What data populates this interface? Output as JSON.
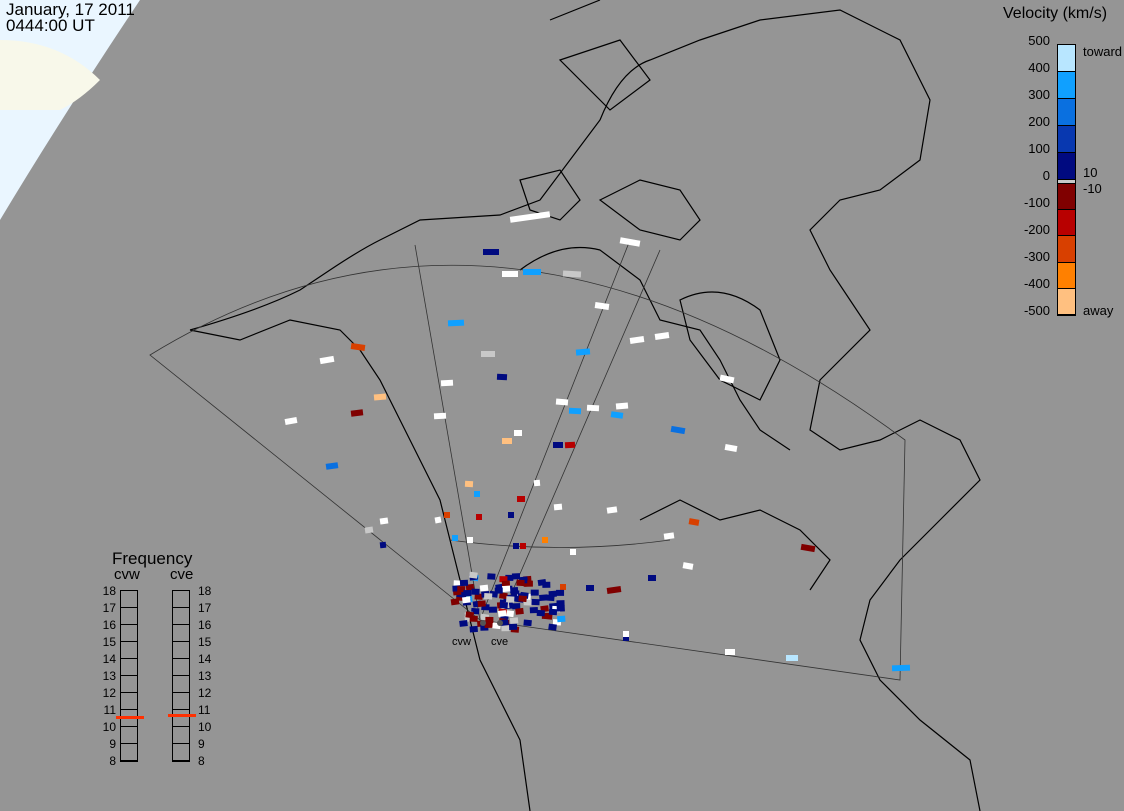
{
  "header": {
    "date": "January, 17 2011",
    "time": "0444:00 UT"
  },
  "colorbar": {
    "title": "Velocity (km/s)",
    "ticks": [
      "500",
      "400",
      "300",
      "200",
      "100",
      "0",
      "-100",
      "-200",
      "-300",
      "-400",
      "-500"
    ],
    "labels": {
      "toward": "toward",
      "away": "away",
      "pos_threshold": "10",
      "neg_threshold": "-10"
    },
    "colors_toward": [
      "#b8e6ff",
      "#10a0ff",
      "#0a70e0",
      "#0838b0",
      "#000a80"
    ],
    "color_zero": "#c8c8c8",
    "colors_away": [
      "#800000",
      "#b80000",
      "#d84000",
      "#ff8000",
      "#ffc080"
    ]
  },
  "frequency": {
    "title": "Frequency",
    "unit_ticks": [
      "18",
      "17",
      "16",
      "15",
      "14",
      "13",
      "12",
      "11",
      "10",
      "9",
      "8"
    ],
    "radars": [
      {
        "name": "cvw",
        "value_mhz": 10.6
      },
      {
        "name": "cve",
        "value_mhz": 10.7
      }
    ],
    "marker_color": "#ff3000"
  },
  "map": {
    "radar_labels": [
      "cvw",
      "cve"
    ],
    "land_outline_color": "#000000",
    "background": "#959595",
    "daylight_color": "#eaf6ff"
  }
}
